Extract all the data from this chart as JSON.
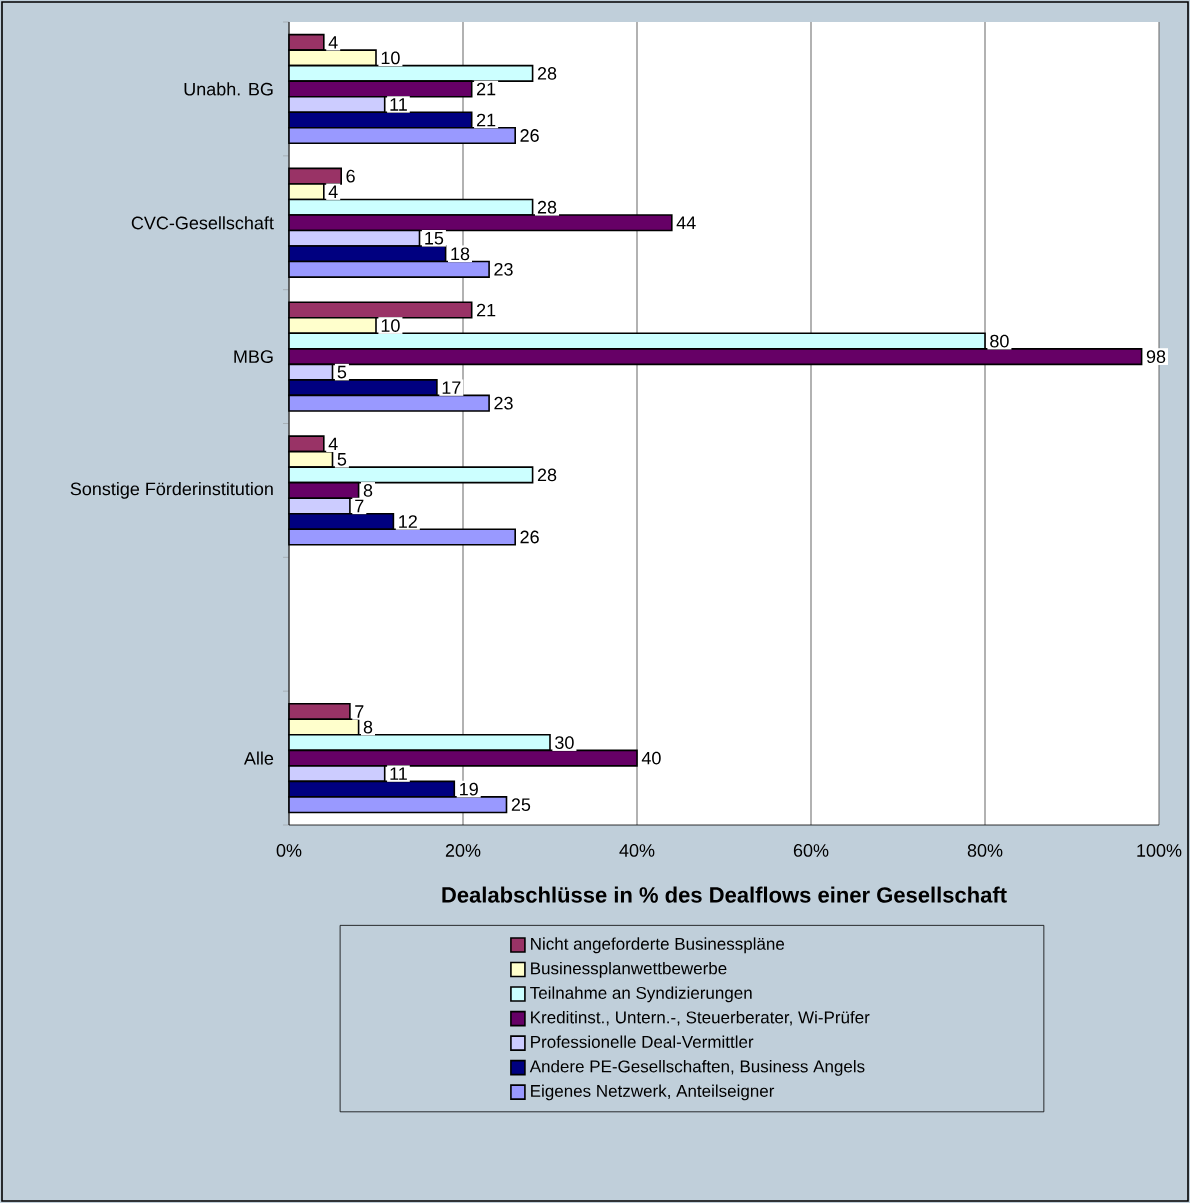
{
  "chart_data": {
    "type": "bar",
    "orientation": "horizontal",
    "xlabel": "Dealabschlüsse in % des Dealflows einer Gesellschaft",
    "categories": [
      "Unabh. BG",
      "CVC-Gesellschaft",
      "MBG",
      "Sonstige Förderinstitution",
      null,
      "Alle"
    ],
    "series": [
      {
        "name": "Nicht angeforderte Businesspläne",
        "color": "#993366",
        "values": [
          4,
          6,
          21,
          4,
          null,
          7
        ]
      },
      {
        "name": "Businessplanwettbewerbe",
        "color": "#ffffcc",
        "values": [
          10,
          4,
          10,
          5,
          null,
          8
        ]
      },
      {
        "name": "Teilnahme an Syndizierungen",
        "color": "#ccffff",
        "values": [
          28,
          28,
          80,
          28,
          null,
          30
        ]
      },
      {
        "name": "Kreditinst., Untern.-, Steuerberater, Wi-Prüfer",
        "color": "#660066",
        "values": [
          21,
          44,
          98,
          8,
          null,
          40
        ]
      },
      {
        "name": "Professionelle Deal-Vermittler",
        "color": "#ccccff",
        "values": [
          11,
          15,
          5,
          7,
          null,
          11
        ]
      },
      {
        "name": "Andere PE-Gesellschaften, Business Angels",
        "color": "#000080",
        "values": [
          21,
          18,
          17,
          12,
          null,
          19
        ]
      },
      {
        "name": "Eigenes Netzwerk, Anteilseigner",
        "color": "#9999ff",
        "values": [
          26,
          23,
          23,
          26,
          null,
          25
        ]
      }
    ],
    "xlim": [
      0,
      100
    ],
    "xticks": [
      {
        "value": 0,
        "label": "0%"
      },
      {
        "value": 20,
        "label": "20%"
      },
      {
        "value": 40,
        "label": "40%"
      },
      {
        "value": 60,
        "label": "60%"
      },
      {
        "value": 80,
        "label": "80%"
      },
      {
        "value": 100,
        "label": "100%"
      }
    ],
    "grid": "x",
    "legend": "bottom",
    "data_labels": true
  }
}
